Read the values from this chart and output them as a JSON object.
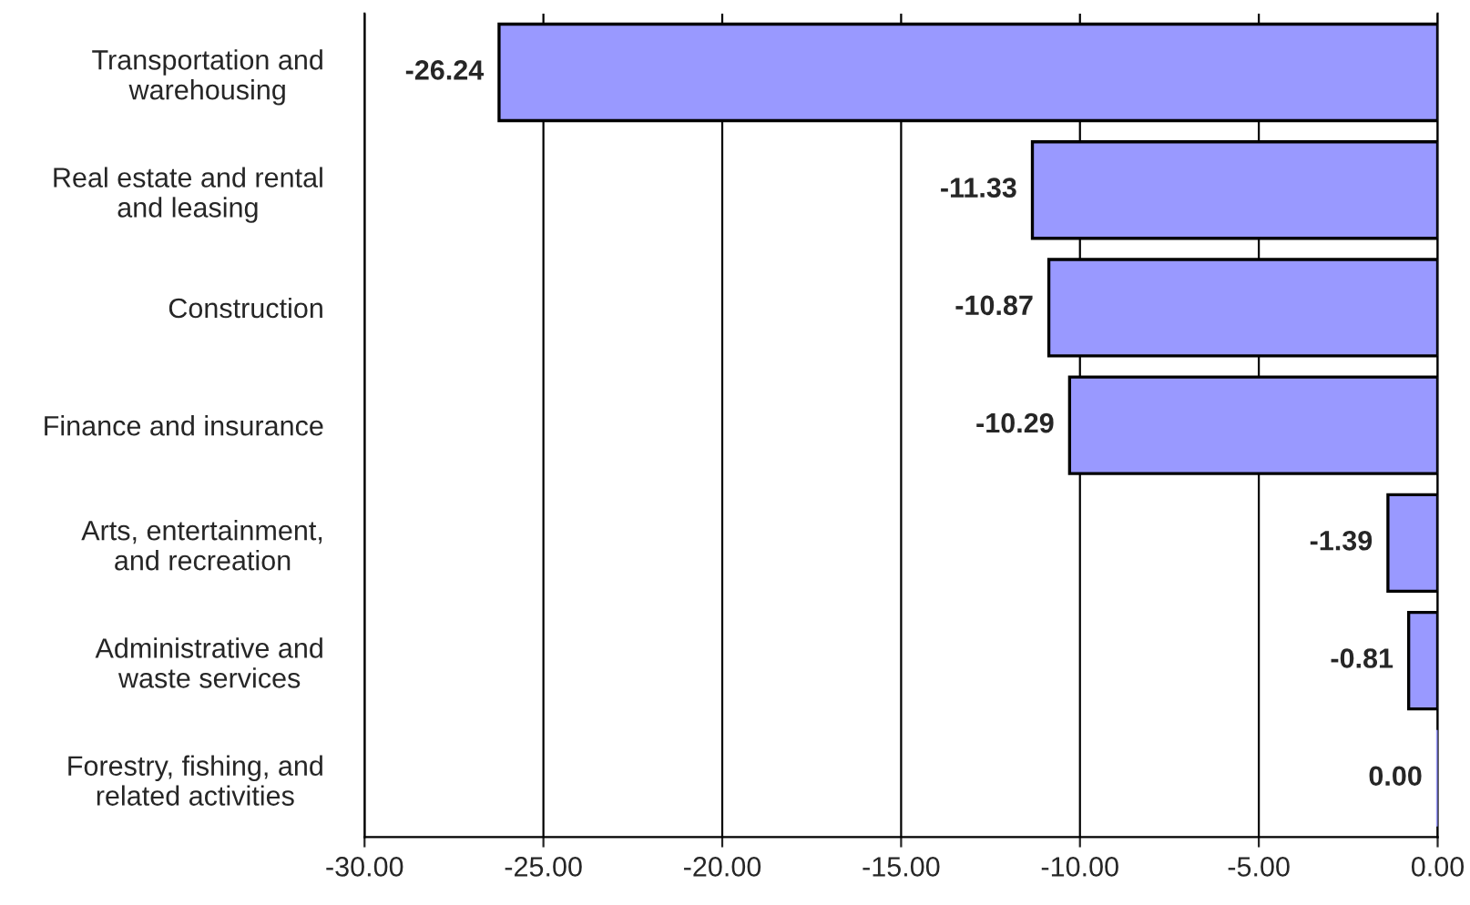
{
  "chart_data": {
    "type": "bar",
    "orientation": "horizontal",
    "categories": [
      "Transportation and\nwarehousing",
      "Real estate and rental\nand leasing",
      "Construction",
      "Finance and insurance",
      "Arts, entertainment,\nand recreation",
      "Administrative and\nwaste services",
      "Forestry, fishing, and\nrelated activities"
    ],
    "values": [
      -26.24,
      -11.33,
      -10.87,
      -10.29,
      -1.39,
      -0.81,
      0.0
    ],
    "value_labels": [
      "-26.24",
      "-11.33",
      "-10.87",
      "-10.29",
      "-1.39",
      "-0.81",
      "0.00"
    ],
    "color": "#9999ff",
    "xlim": [
      -30,
      0
    ],
    "xticks": [
      {
        "value": -30,
        "label": "-30.00"
      },
      {
        "value": -25,
        "label": "-25.00"
      },
      {
        "value": -20,
        "label": "-20.00"
      },
      {
        "value": -15,
        "label": "-15.00"
      },
      {
        "value": -10,
        "label": "-10.00"
      },
      {
        "value": -5,
        "label": "-5.00"
      },
      {
        "value": 0,
        "label": "0.00"
      }
    ],
    "grid": "x"
  }
}
